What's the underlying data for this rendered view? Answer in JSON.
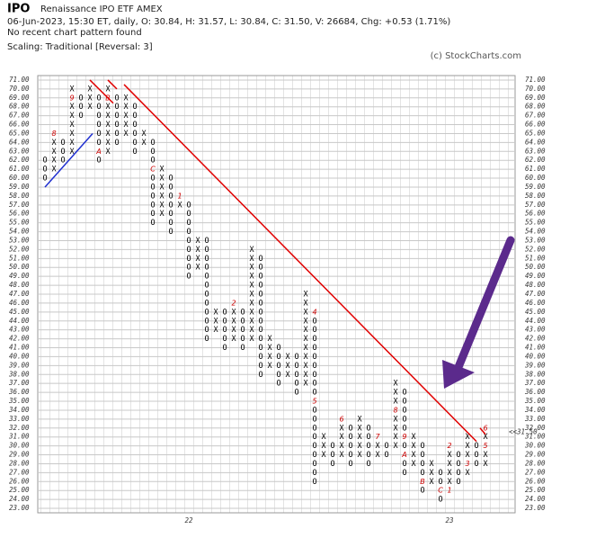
{
  "chart_data": {
    "type": "point-figure",
    "symbol": "IPO",
    "name": "Renaissance IPO ETF  AMEX",
    "info": "06-Jun-2023, 15:30 ET, daily, O: 30.84, H: 31.57, L: 30.84, C: 31.50, V: 26684, Chg: +0.53 (1.71%)",
    "pattern_note": "No recent chart pattern found",
    "scaling": "Scaling: Traditional [Reversal: 3]",
    "copyright": "(c) StockCharts.com",
    "ylim": [
      22.5,
      71.5
    ],
    "yticks": [
      {
        "value": 71,
        "label": "71.00"
      },
      {
        "value": 70,
        "label": "70.00"
      },
      {
        "value": 69,
        "label": "69.00"
      },
      {
        "value": 68,
        "label": "68.00"
      },
      {
        "value": 67,
        "label": "67.00"
      },
      {
        "value": 66,
        "label": "66.00"
      },
      {
        "value": 65,
        "label": "65.00"
      },
      {
        "value": 64,
        "label": "64.00"
      },
      {
        "value": 63,
        "label": "63.00"
      },
      {
        "value": 62,
        "label": "62.00"
      },
      {
        "value": 61,
        "label": "61.00"
      },
      {
        "value": 60,
        "label": "60.00"
      },
      {
        "value": 59,
        "label": "59.00"
      },
      {
        "value": 58,
        "label": "58.00"
      },
      {
        "value": 57,
        "label": "57.00"
      },
      {
        "value": 56,
        "label": "56.00"
      },
      {
        "value": 55,
        "label": "55.00"
      },
      {
        "value": 54,
        "label": "54.00"
      },
      {
        "value": 53,
        "label": "53.00"
      },
      {
        "value": 52,
        "label": "52.00"
      },
      {
        "value": 51,
        "label": "51.00"
      },
      {
        "value": 50,
        "label": "50.00"
      },
      {
        "value": 49,
        "label": "49.00"
      },
      {
        "value": 48,
        "label": "48.00"
      },
      {
        "value": 47,
        "label": "47.00"
      },
      {
        "value": 46,
        "label": "46.00"
      },
      {
        "value": 45,
        "label": "45.00"
      },
      {
        "value": 44,
        "label": "44.00"
      },
      {
        "value": 43,
        "label": "43.00"
      },
      {
        "value": 42,
        "label": "42.00"
      },
      {
        "value": 41,
        "label": "41.00"
      },
      {
        "value": 40,
        "label": "40.00"
      },
      {
        "value": 39,
        "label": "39.00"
      },
      {
        "value": 38,
        "label": "38.00"
      },
      {
        "value": 37,
        "label": "37.00"
      },
      {
        "value": 36,
        "label": "36.00"
      },
      {
        "value": 35,
        "label": "35.00"
      },
      {
        "value": 34,
        "label": "34.00"
      },
      {
        "value": 33,
        "label": "33.00"
      },
      {
        "value": 32,
        "label": "32.00"
      },
      {
        "value": 31,
        "label": "31.00"
      },
      {
        "value": 30,
        "label": "30.00"
      },
      {
        "value": 29,
        "label": "29.00"
      },
      {
        "value": 28,
        "label": "28.00"
      },
      {
        "value": 27,
        "label": "27.00"
      },
      {
        "value": 26,
        "label": "26.00"
      },
      {
        "value": 25,
        "label": "25.00"
      },
      {
        "value": 24,
        "label": "24.00"
      },
      {
        "value": 23,
        "label": "23.00"
      }
    ],
    "last_price": {
      "value": 31.5,
      "label": "<<31.50"
    },
    "box_colors": {
      "X": "#000000",
      "O": "#000000",
      "marker": "#cc0000"
    },
    "columns": [
      {
        "box": "O",
        "low": 60,
        "high": 62
      },
      {
        "box": "X",
        "low": 61,
        "high": 65,
        "markers": [
          {
            "price": 65,
            "label": "8"
          }
        ]
      },
      {
        "box": "O",
        "low": 62,
        "high": 64
      },
      {
        "box": "X",
        "low": 63,
        "high": 70,
        "markers": [
          {
            "price": 69,
            "label": "9"
          }
        ]
      },
      {
        "box": "O",
        "low": 67,
        "high": 69
      },
      {
        "box": "X",
        "low": 68,
        "high": 70
      },
      {
        "box": "O",
        "low": 62,
        "high": 69,
        "markers": [
          {
            "price": 63,
            "label": "A"
          }
        ]
      },
      {
        "box": "X",
        "low": 63,
        "high": 70,
        "markers": [
          {
            "price": 69,
            "label": "B"
          }
        ]
      },
      {
        "box": "O",
        "low": 64,
        "high": 69
      },
      {
        "box": "X",
        "low": 65,
        "high": 69
      },
      {
        "box": "O",
        "low": 63,
        "high": 68
      },
      {
        "box": "X",
        "low": 64,
        "high": 65
      },
      {
        "box": "O",
        "low": 55,
        "high": 64,
        "markers": [
          {
            "price": 61,
            "label": "C"
          }
        ]
      },
      {
        "box": "X",
        "low": 56,
        "high": 61
      },
      {
        "box": "O",
        "low": 54,
        "high": 60
      },
      {
        "box": "X",
        "low": 57,
        "high": 58,
        "markers": [
          {
            "price": 58,
            "label": "1"
          }
        ]
      },
      {
        "box": "O",
        "low": 49,
        "high": 57,
        "year": "22"
      },
      {
        "box": "X",
        "low": 50,
        "high": 53
      },
      {
        "box": "O",
        "low": 42,
        "high": 53
      },
      {
        "box": "X",
        "low": 43,
        "high": 45
      },
      {
        "box": "O",
        "low": 41,
        "high": 45
      },
      {
        "box": "X",
        "low": 42,
        "high": 46,
        "markers": [
          {
            "price": 46,
            "label": "2"
          }
        ]
      },
      {
        "box": "O",
        "low": 41,
        "high": 45
      },
      {
        "box": "X",
        "low": 42,
        "high": 52
      },
      {
        "box": "O",
        "low": 38,
        "high": 51
      },
      {
        "box": "X",
        "low": 39,
        "high": 42
      },
      {
        "box": "O",
        "low": 37,
        "high": 41
      },
      {
        "box": "X",
        "low": 38,
        "high": 40
      },
      {
        "box": "O",
        "low": 36,
        "high": 40
      },
      {
        "box": "X",
        "low": 37,
        "high": 47
      },
      {
        "box": "O",
        "low": 26,
        "high": 45,
        "markers": [
          {
            "price": 45,
            "label": "4"
          },
          {
            "price": 35,
            "label": "5"
          }
        ]
      },
      {
        "box": "X",
        "low": 29,
        "high": 31
      },
      {
        "box": "O",
        "low": 28,
        "high": 30
      },
      {
        "box": "X",
        "low": 29,
        "high": 33,
        "markers": [
          {
            "price": 33,
            "label": "6"
          }
        ]
      },
      {
        "box": "O",
        "low": 28,
        "high": 32
      },
      {
        "box": "X",
        "low": 29,
        "high": 33
      },
      {
        "box": "O",
        "low": 28,
        "high": 32
      },
      {
        "box": "X",
        "low": 29,
        "high": 31,
        "markers": [
          {
            "price": 31,
            "label": "7"
          }
        ]
      },
      {
        "box": "O",
        "low": 29,
        "high": 30
      },
      {
        "box": "X",
        "low": 30,
        "high": 37,
        "markers": [
          {
            "price": 34,
            "label": "8"
          }
        ]
      },
      {
        "box": "O",
        "low": 27,
        "high": 36,
        "markers": [
          {
            "price": 31,
            "label": "9"
          },
          {
            "price": 29,
            "label": "A"
          }
        ]
      },
      {
        "box": "X",
        "low": 28,
        "high": 31
      },
      {
        "box": "O",
        "low": 25,
        "high": 30,
        "markers": [
          {
            "price": 26,
            "label": "B"
          }
        ]
      },
      {
        "box": "X",
        "low": 26,
        "high": 28
      },
      {
        "box": "O",
        "low": 24,
        "high": 27,
        "markers": [
          {
            "price": 25,
            "label": "C"
          }
        ]
      },
      {
        "box": "X",
        "low": 25,
        "high": 30,
        "markers": [
          {
            "price": 25,
            "label": "1"
          },
          {
            "price": 30,
            "label": "2"
          }
        ],
        "year": "23"
      },
      {
        "box": "O",
        "low": 26,
        "high": 29
      },
      {
        "box": "X",
        "low": 27,
        "high": 31,
        "markers": [
          {
            "price": 28,
            "label": "3"
          }
        ]
      },
      {
        "box": "O",
        "low": 28,
        "high": 30
      },
      {
        "box": "X",
        "low": 28,
        "high": 32,
        "markers": [
          {
            "price": 30,
            "label": "5"
          },
          {
            "price": 32,
            "label": "6"
          }
        ]
      }
    ],
    "trendlines": [
      {
        "color": "#1f2fd0",
        "from": [
          0,
          59
        ],
        "to": [
          5.3,
          65
        ]
      },
      {
        "color": "#e00000",
        "from": [
          5,
          71
        ],
        "to": [
          7.6,
          68.4
        ]
      },
      {
        "color": "#e00000",
        "from": [
          7,
          71
        ],
        "to": [
          8,
          70
        ]
      },
      {
        "color": "#e00000",
        "from": [
          8.8,
          70.5
        ],
        "to": [
          48,
          30.5
        ]
      },
      {
        "color": "#e00000",
        "from": [
          48.4,
          32
        ],
        "to": [
          49,
          31.3
        ]
      }
    ]
  }
}
